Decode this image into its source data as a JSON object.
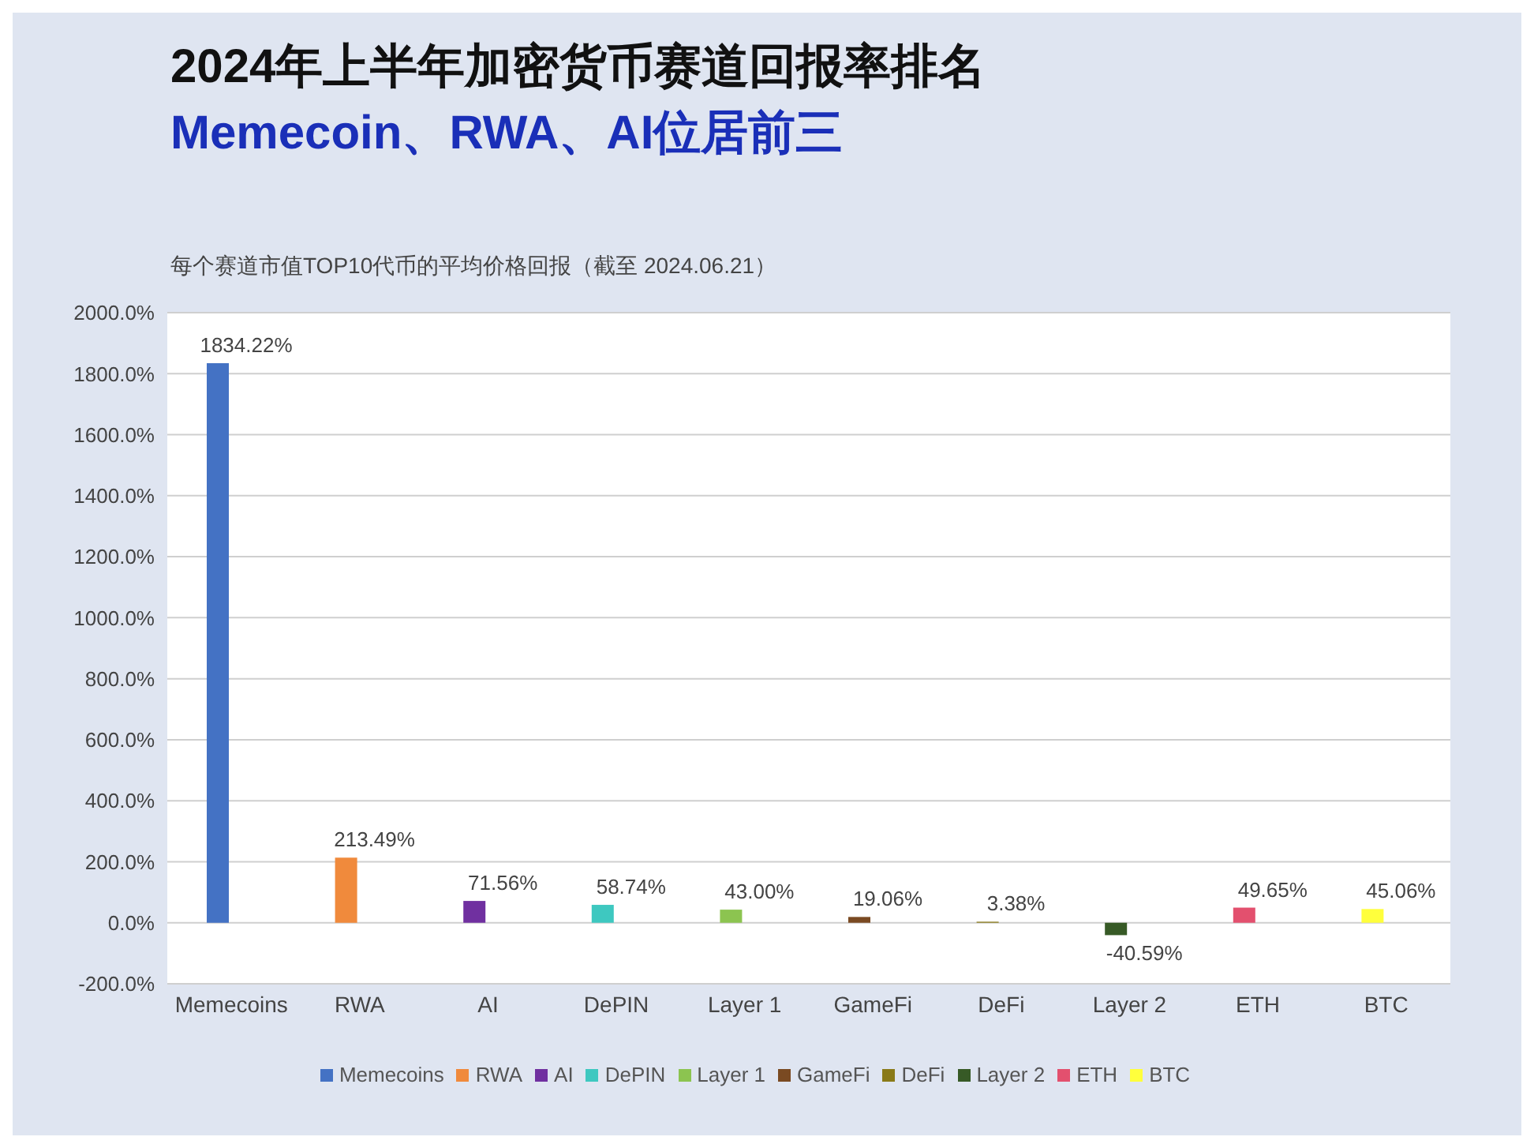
{
  "chart_data": {
    "type": "bar",
    "title": "2024年上半年加密货币赛道回报率排名",
    "subtitle": "Memecoin、RWA、AI位居前三",
    "annotations": [
      "每个赛道市值TOP10代币的平均价格回报（截至 2024.06.21）"
    ],
    "categories": [
      "Memecoins",
      "RWA",
      "AI",
      "DePIN",
      "Layer 1",
      "GameFi",
      "DeFi",
      "Layer 2",
      "ETH",
      "BTC"
    ],
    "stacked": true,
    "series": [
      {
        "name": "Memecoins",
        "color": "#4472c4",
        "values": [
          1834.22,
          null,
          null,
          null,
          null,
          null,
          null,
          null,
          null,
          null
        ],
        "value_labels": [
          "1834.22%",
          null,
          null,
          null,
          null,
          null,
          null,
          null,
          null,
          null
        ]
      },
      {
        "name": "RWA",
        "color": "#f08a3c",
        "values": [
          null,
          213.49,
          null,
          null,
          null,
          null,
          null,
          null,
          null,
          null
        ],
        "value_labels": [
          null,
          "213.49%",
          null,
          null,
          null,
          null,
          null,
          null,
          null,
          null
        ]
      },
      {
        "name": "AI",
        "color": "#7030a0",
        "values": [
          null,
          null,
          71.56,
          null,
          null,
          null,
          null,
          null,
          null,
          null
        ],
        "value_labels": [
          null,
          null,
          "71.56%",
          null,
          null,
          null,
          null,
          null,
          null,
          null
        ]
      },
      {
        "name": "DePIN",
        "color": "#3ec8c0",
        "values": [
          null,
          null,
          null,
          58.74,
          null,
          null,
          null,
          null,
          null,
          null
        ],
        "value_labels": [
          null,
          null,
          null,
          "58.74%",
          null,
          null,
          null,
          null,
          null,
          null
        ]
      },
      {
        "name": "Layer 1",
        "color": "#8cc450",
        "values": [
          null,
          null,
          null,
          null,
          43.0,
          null,
          null,
          null,
          null,
          null
        ],
        "value_labels": [
          null,
          null,
          null,
          null,
          "43.00%",
          null,
          null,
          null,
          null,
          null
        ]
      },
      {
        "name": "GameFi",
        "color": "#7a4a22",
        "values": [
          null,
          null,
          null,
          null,
          null,
          19.06,
          null,
          null,
          null,
          null
        ],
        "value_labels": [
          null,
          null,
          null,
          null,
          null,
          "19.06%",
          null,
          null,
          null,
          null
        ]
      },
      {
        "name": "DeFi",
        "color": "#8a7a18",
        "values": [
          null,
          null,
          null,
          null,
          null,
          null,
          3.38,
          null,
          null,
          null
        ],
        "value_labels": [
          null,
          null,
          null,
          null,
          null,
          null,
          "3.38%",
          null,
          null,
          null
        ]
      },
      {
        "name": "Layer 2",
        "color": "#375a26",
        "values": [
          null,
          null,
          null,
          null,
          null,
          null,
          null,
          -40.59,
          null,
          null
        ],
        "value_labels": [
          null,
          null,
          null,
          null,
          null,
          null,
          null,
          "-40.59%",
          null,
          null
        ]
      },
      {
        "name": "ETH",
        "color": "#e3506e",
        "values": [
          null,
          null,
          null,
          null,
          null,
          null,
          null,
          null,
          49.65,
          null
        ],
        "value_labels": [
          null,
          null,
          null,
          null,
          null,
          null,
          null,
          null,
          "49.65%",
          null
        ]
      },
      {
        "name": "BTC",
        "color": "#ffff3c",
        "values": [
          null,
          null,
          null,
          null,
          null,
          null,
          null,
          null,
          null,
          45.06
        ],
        "value_labels": [
          null,
          null,
          null,
          null,
          null,
          null,
          null,
          null,
          null,
          "45.06%"
        ]
      }
    ],
    "ylim": [
      -200,
      2000
    ],
    "yticks": [
      {
        "value": -200,
        "label": "-200.0%"
      },
      {
        "value": 0,
        "label": "0.0%"
      },
      {
        "value": 200,
        "label": "200.0%"
      },
      {
        "value": 400,
        "label": "400.0%"
      },
      {
        "value": 600,
        "label": "600.0%"
      },
      {
        "value": 800,
        "label": "800.0%"
      },
      {
        "value": 1000,
        "label": "1000.0%"
      },
      {
        "value": 1200,
        "label": "1200.0%"
      },
      {
        "value": 1400,
        "label": "1400.0%"
      },
      {
        "value": 1600,
        "label": "1600.0%"
      },
      {
        "value": 1800,
        "label": "1800.0%"
      },
      {
        "value": 2000,
        "label": "2000.0%"
      }
    ],
    "grid": "y",
    "legend": "bottom"
  }
}
